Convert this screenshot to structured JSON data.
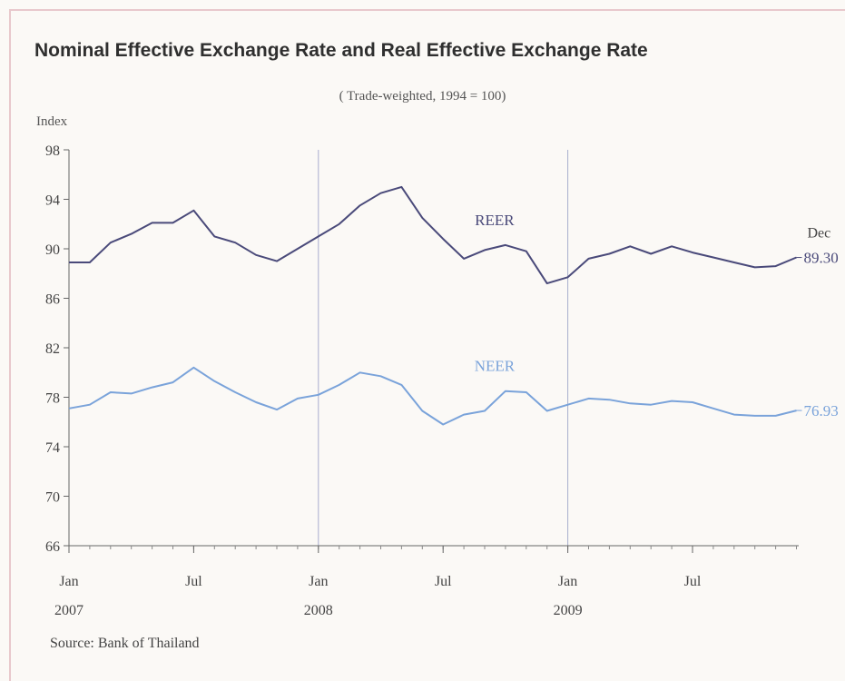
{
  "chart_data": {
    "type": "line",
    "title": "Nominal Effective Exchange Rate and Real Effective Exchange Rate",
    "subtitle": "( Trade-weighted, 1994 = 100)",
    "ylabel": "Index",
    "xlabel": "",
    "ylim": [
      66,
      98
    ],
    "yticks": [
      66,
      70,
      74,
      78,
      82,
      86,
      90,
      94,
      98
    ],
    "x_months": [
      "2007-01",
      "2007-02",
      "2007-03",
      "2007-04",
      "2007-05",
      "2007-06",
      "2007-07",
      "2007-08",
      "2007-09",
      "2007-10",
      "2007-11",
      "2007-12",
      "2008-01",
      "2008-02",
      "2008-03",
      "2008-04",
      "2008-05",
      "2008-06",
      "2008-07",
      "2008-08",
      "2008-09",
      "2008-10",
      "2008-11",
      "2008-12",
      "2009-01",
      "2009-02",
      "2009-03",
      "2009-04",
      "2009-05",
      "2009-06",
      "2009-07",
      "2009-08",
      "2009-09",
      "2009-10",
      "2009-11",
      "2009-12"
    ],
    "xticks": [
      {
        "month": "2007-01",
        "label": "Jan",
        "year": "2007"
      },
      {
        "month": "2007-07",
        "label": "Jul",
        "year": ""
      },
      {
        "month": "2008-01",
        "label": "Jan",
        "year": "2008"
      },
      {
        "month": "2008-07",
        "label": "Jul",
        "year": ""
      },
      {
        "month": "2009-01",
        "label": "Jan",
        "year": "2009"
      },
      {
        "month": "2009-07",
        "label": "Jul",
        "year": ""
      }
    ],
    "vlines": [
      "2008-01",
      "2009-01"
    ],
    "series": [
      {
        "name": "REER",
        "color": "#4a4a7a",
        "values": [
          88.9,
          88.9,
          90.5,
          91.2,
          92.1,
          92.1,
          93.1,
          91.0,
          90.5,
          89.5,
          89.0,
          90.0,
          91.0,
          92.0,
          93.5,
          94.5,
          95.0,
          92.5,
          90.8,
          89.2,
          89.9,
          90.3,
          89.8,
          87.2,
          87.7,
          89.2,
          89.6,
          90.2,
          89.6,
          90.2,
          89.7,
          89.3,
          88.9,
          88.5,
          88.6,
          89.3
        ],
        "end_label": "89.30",
        "label_month": "2008-10"
      },
      {
        "name": "NEER",
        "color": "#7aa3da",
        "values": [
          77.1,
          77.4,
          78.4,
          78.3,
          78.8,
          79.2,
          80.4,
          79.3,
          78.4,
          77.6,
          77.0,
          77.9,
          78.2,
          79.0,
          80.0,
          79.7,
          79.0,
          76.9,
          75.8,
          76.6,
          76.9,
          78.5,
          78.4,
          76.9,
          77.4,
          77.9,
          77.8,
          77.5,
          77.4,
          77.7,
          77.6,
          77.1,
          76.6,
          76.5,
          76.5,
          76.93
        ],
        "end_label": "76.93",
        "label_month": "2008-10"
      }
    ],
    "annotation": "Dec",
    "source": "Source: Bank of Thailand"
  }
}
